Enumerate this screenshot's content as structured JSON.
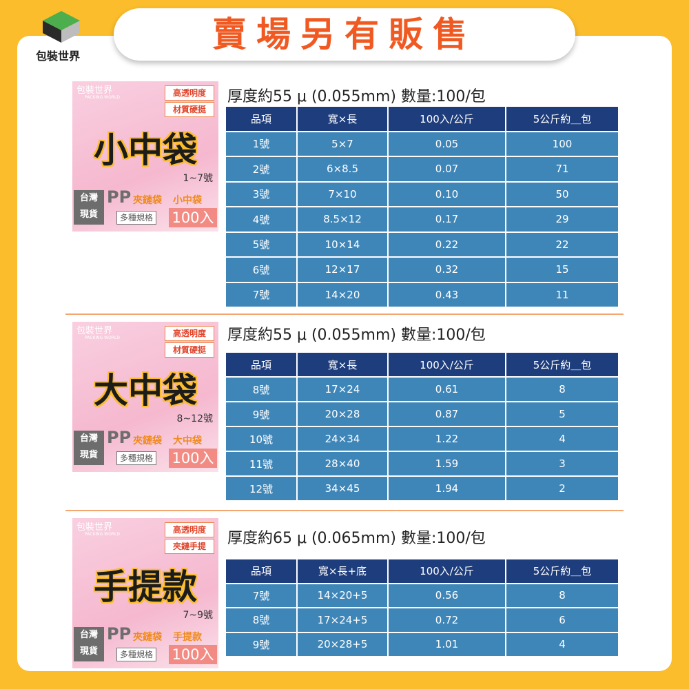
{
  "logo": {
    "text": "包裝世界"
  },
  "banner": {
    "title": "賣場另有販售"
  },
  "sections": [
    {
      "card": {
        "brand": "包裝世界",
        "brand_en": "PACKING WORLD",
        "tags": [
          "高透明度",
          "材質硬挺"
        ],
        "title": "小中袋",
        "range": "1~7號",
        "stock": [
          "台灣",
          "現貨"
        ],
        "material": "PP",
        "kind": "夾鏈袋",
        "name": "小中袋",
        "spec": "多種規格",
        "count": "100入"
      },
      "heading": "厚度約55 μ (0.055mm) 數量:100/包",
      "table": {
        "header": [
          "品項",
          "寬×長",
          "100入/公斤",
          "5公斤約＿包"
        ],
        "rows": [
          [
            "1號",
            "5×7",
            "0.05",
            "100"
          ],
          [
            "2號",
            "6×8.5",
            "0.07",
            "71"
          ],
          [
            "3號",
            "7×10",
            "0.10",
            "50"
          ],
          [
            "4號",
            "8.5×12",
            "0.17",
            "29"
          ],
          [
            "5號",
            "10×14",
            "0.22",
            "22"
          ],
          [
            "6號",
            "12×17",
            "0.32",
            "15"
          ],
          [
            "7號",
            "14×20",
            "0.43",
            "11"
          ]
        ]
      }
    },
    {
      "card": {
        "brand": "包裝世界",
        "brand_en": "PACKING WORLD",
        "tags": [
          "高透明度",
          "材質硬挺"
        ],
        "title": "大中袋",
        "range": "8~12號",
        "stock": [
          "台灣",
          "現貨"
        ],
        "material": "PP",
        "kind": "夾鏈袋",
        "name": "大中袋",
        "spec": "多種規格",
        "count": "100入"
      },
      "heading": "厚度約55 μ (0.055mm) 數量:100/包",
      "table": {
        "header": [
          "品項",
          "寬×長",
          "100入/公斤",
          "5公斤約＿包"
        ],
        "rows": [
          [
            "8號",
            "17×24",
            "0.61",
            "8"
          ],
          [
            "9號",
            "20×28",
            "0.87",
            "5"
          ],
          [
            "10號",
            "24×34",
            "1.22",
            "4"
          ],
          [
            "11號",
            "28×40",
            "1.59",
            "3"
          ],
          [
            "12號",
            "34×45",
            "1.94",
            "2"
          ]
        ]
      }
    },
    {
      "card": {
        "brand": "包裝世界",
        "brand_en": "PACKING WORLD",
        "tags": [
          "高透明度",
          "夾鏈手提"
        ],
        "title": "手提款",
        "range": "7~9號",
        "stock": [
          "台灣",
          "現貨"
        ],
        "material": "PP",
        "kind": "夾鏈袋",
        "name": "手提款",
        "spec": "多種規格",
        "count": "100入"
      },
      "heading": "厚度約65 μ (0.065mm) 數量:100/包",
      "table": {
        "header": [
          "品項",
          "寬×長+底",
          "100入/公斤",
          "5公斤約＿包"
        ],
        "rows": [
          [
            "7號",
            "14×20+5",
            "0.56",
            "8"
          ],
          [
            "8號",
            "17×24+5",
            "0.72",
            "6"
          ],
          [
            "9號",
            "20×28+5",
            "1.01",
            "4"
          ]
        ]
      }
    }
  ]
}
